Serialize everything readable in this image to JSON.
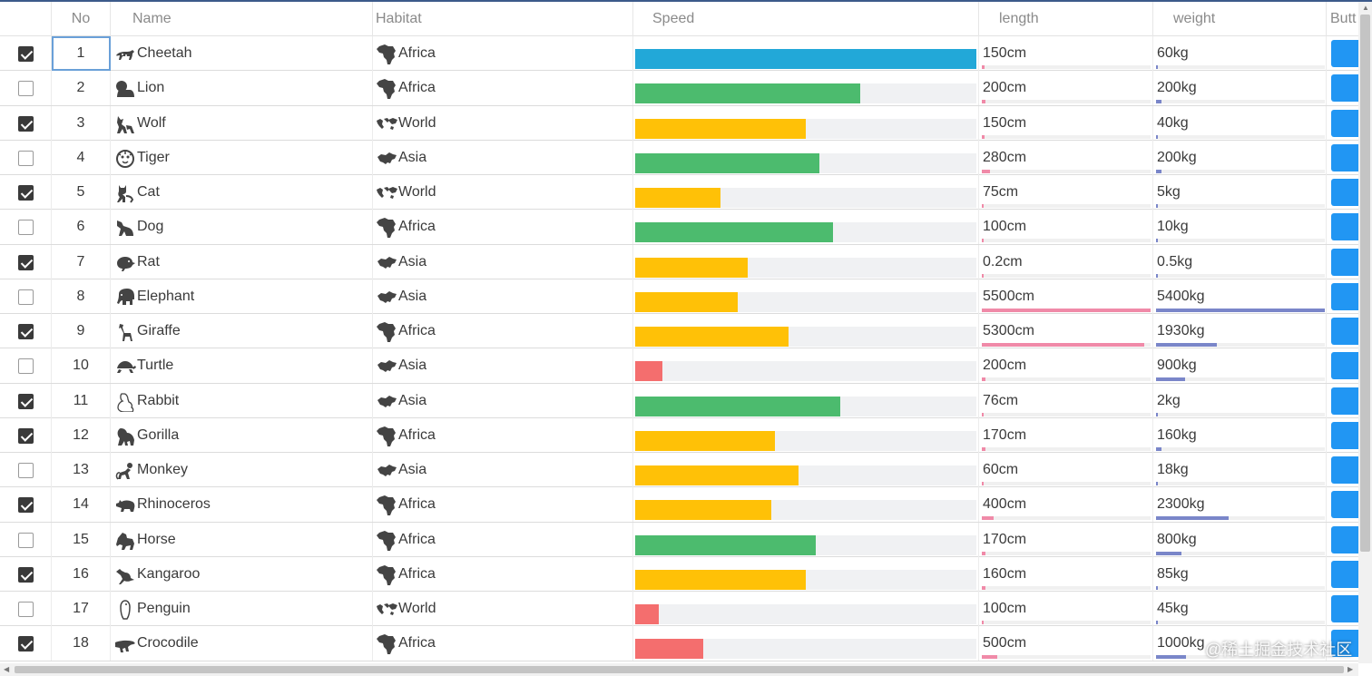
{
  "headers": {
    "no": "No",
    "name": "Name",
    "habitat": "Habitat",
    "speed": "Speed",
    "length": "length",
    "weight": "weight",
    "button": "Butt"
  },
  "colors": {
    "fast": "#22a8d8",
    "high": "#4cbb6e",
    "mid": "#ffc107",
    "low": "#f46e6e",
    "length_bar": "#f08aa8",
    "weight_bar": "#7a86c9",
    "button": "#2196f3"
  },
  "rows": [
    {
      "checked": true,
      "no": "1",
      "name": "Cheetah",
      "icon": "cheetah-icon",
      "habitat": "Africa",
      "habitat_icon": "africa-icon",
      "speed": 100,
      "speed_level": "fast",
      "length": "150cm",
      "length_pct": 1.5,
      "weight": "60kg",
      "weight_pct": 1
    },
    {
      "checked": false,
      "no": "2",
      "name": "Lion",
      "icon": "lion-icon",
      "habitat": "Africa",
      "habitat_icon": "africa-icon",
      "speed": 66,
      "speed_level": "high",
      "length": "200cm",
      "length_pct": 2,
      "weight": "200kg",
      "weight_pct": 3
    },
    {
      "checked": true,
      "no": "3",
      "name": "Wolf",
      "icon": "wolf-icon",
      "habitat": "World",
      "habitat_icon": "world-icon",
      "speed": 50,
      "speed_level": "mid",
      "length": "150cm",
      "length_pct": 1.5,
      "weight": "40kg",
      "weight_pct": 1
    },
    {
      "checked": false,
      "no": "4",
      "name": "Tiger",
      "icon": "tiger-icon",
      "habitat": "Asia",
      "habitat_icon": "asia-icon",
      "speed": 54,
      "speed_level": "high",
      "length": "280cm",
      "length_pct": 5,
      "weight": "200kg",
      "weight_pct": 3
    },
    {
      "checked": true,
      "no": "5",
      "name": "Cat",
      "icon": "cat-icon",
      "habitat": "World",
      "habitat_icon": "world-icon",
      "speed": 25,
      "speed_level": "mid",
      "length": "75cm",
      "length_pct": 1,
      "weight": "5kg",
      "weight_pct": 1
    },
    {
      "checked": false,
      "no": "6",
      "name": "Dog",
      "icon": "dog-icon",
      "habitat": "Africa",
      "habitat_icon": "africa-icon",
      "speed": 58,
      "speed_level": "high",
      "length": "100cm",
      "length_pct": 1,
      "weight": "10kg",
      "weight_pct": 1
    },
    {
      "checked": true,
      "no": "7",
      "name": "Rat",
      "icon": "rat-icon",
      "habitat": "Asia",
      "habitat_icon": "asia-icon",
      "speed": 33,
      "speed_level": "mid",
      "length": "0.2cm",
      "length_pct": 1,
      "weight": "0.5kg",
      "weight_pct": 1
    },
    {
      "checked": false,
      "no": "8",
      "name": "Elephant",
      "icon": "elephant-icon",
      "habitat": "Asia",
      "habitat_icon": "asia-icon",
      "speed": 30,
      "speed_level": "mid",
      "length": "5500cm",
      "length_pct": 100,
      "weight": "5400kg",
      "weight_pct": 100
    },
    {
      "checked": true,
      "no": "9",
      "name": "Giraffe",
      "icon": "giraffe-icon",
      "habitat": "Africa",
      "habitat_icon": "africa-icon",
      "speed": 45,
      "speed_level": "mid",
      "length": "5300cm",
      "length_pct": 96,
      "weight": "1930kg",
      "weight_pct": 36
    },
    {
      "checked": false,
      "no": "10",
      "name": "Turtle",
      "icon": "turtle-icon",
      "habitat": "Asia",
      "habitat_icon": "asia-icon",
      "speed": 8,
      "speed_level": "low",
      "length": "200cm",
      "length_pct": 2,
      "weight": "900kg",
      "weight_pct": 17
    },
    {
      "checked": true,
      "no": "11",
      "name": "Rabbit",
      "icon": "rabbit-icon",
      "habitat": "Asia",
      "habitat_icon": "asia-icon",
      "speed": 60,
      "speed_level": "high",
      "length": "76cm",
      "length_pct": 1,
      "weight": "2kg",
      "weight_pct": 1
    },
    {
      "checked": true,
      "no": "12",
      "name": "Gorilla",
      "icon": "gorilla-icon",
      "habitat": "Africa",
      "habitat_icon": "africa-icon",
      "speed": 41,
      "speed_level": "mid",
      "length": "170cm",
      "length_pct": 2,
      "weight": "160kg",
      "weight_pct": 3
    },
    {
      "checked": false,
      "no": "13",
      "name": "Monkey",
      "icon": "monkey-icon",
      "habitat": "Asia",
      "habitat_icon": "asia-icon",
      "speed": 48,
      "speed_level": "mid",
      "length": "60cm",
      "length_pct": 1,
      "weight": "18kg",
      "weight_pct": 1
    },
    {
      "checked": true,
      "no": "14",
      "name": "Rhinoceros",
      "icon": "rhinoceros-icon",
      "habitat": "Africa",
      "habitat_icon": "africa-icon",
      "speed": 40,
      "speed_level": "mid",
      "length": "400cm",
      "length_pct": 7,
      "weight": "2300kg",
      "weight_pct": 43
    },
    {
      "checked": false,
      "no": "15",
      "name": "Horse",
      "icon": "horse-icon",
      "habitat": "Africa",
      "habitat_icon": "africa-icon",
      "speed": 53,
      "speed_level": "high",
      "length": "170cm",
      "length_pct": 2,
      "weight": "800kg",
      "weight_pct": 15
    },
    {
      "checked": true,
      "no": "16",
      "name": "Kangaroo",
      "icon": "kangaroo-icon",
      "habitat": "Africa",
      "habitat_icon": "africa-icon",
      "speed": 50,
      "speed_level": "mid",
      "length": "160cm",
      "length_pct": 2,
      "weight": "85kg",
      "weight_pct": 1
    },
    {
      "checked": false,
      "no": "17",
      "name": "Penguin",
      "icon": "penguin-icon",
      "habitat": "World",
      "habitat_icon": "world-icon",
      "speed": 7,
      "speed_level": "low",
      "length": "100cm",
      "length_pct": 1,
      "weight": "45kg",
      "weight_pct": 1
    },
    {
      "checked": true,
      "no": "18",
      "name": "Crocodile",
      "icon": "crocodile-icon",
      "habitat": "Africa",
      "habitat_icon": "africa-icon",
      "speed": 20,
      "speed_level": "low",
      "length": "500cm",
      "length_pct": 9,
      "weight": "1000kg",
      "weight_pct": 18
    }
  ],
  "watermark": "@稀土掘金技术社区"
}
